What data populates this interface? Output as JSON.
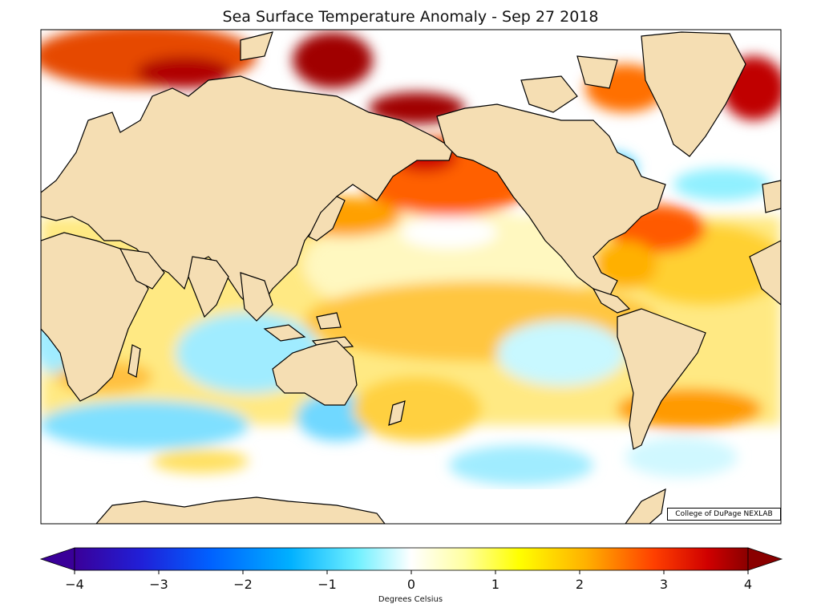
{
  "title": "Sea Surface Temperature Anomaly - Sep 27 2018",
  "credit": "College of DuPage NEXLAB",
  "colorbar": {
    "label": "Degrees Celsius",
    "min": -4,
    "max": 4,
    "ticks": [
      "−4",
      "−3",
      "−2",
      "−1",
      "0",
      "1",
      "2",
      "3",
      "4"
    ],
    "colors": [
      "#2a0080",
      "#1a1ad0",
      "#0050ff",
      "#0096ff",
      "#3ec8ff",
      "#9ff0ff",
      "#ffffff",
      "#ffffd0",
      "#ffff00",
      "#ffc000",
      "#ff7000",
      "#ff2000",
      "#c00000",
      "#900000"
    ]
  },
  "map": {
    "projection": "cylindrical, centered on Pacific",
    "land_color": "#f5deb3",
    "ocean_background": "#ffffff"
  }
}
